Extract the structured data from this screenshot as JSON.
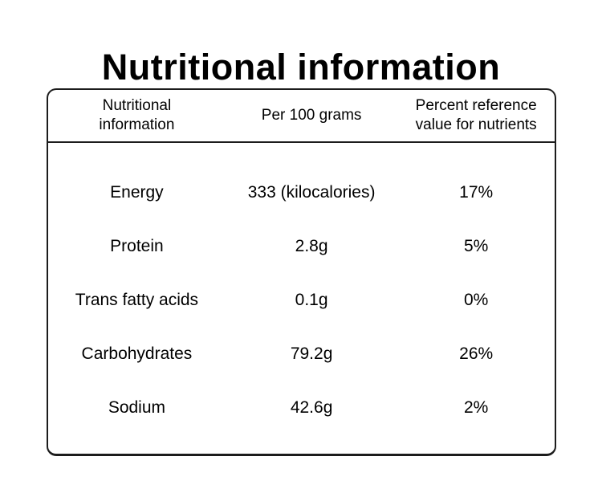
{
  "page": {
    "title": "Nutritional information",
    "background": "#ffffff"
  },
  "colors": {
    "text": "#000000",
    "border": "#1c1c1c"
  },
  "table": {
    "headers": {
      "nutrient": "Nutritional information",
      "per_100g": "Per 100 grams",
      "percent_ref": "Percent reference value for nutrients"
    },
    "rows": [
      {
        "name": "Energy",
        "per_100g": "333 (kilocalories)",
        "percent": "17%"
      },
      {
        "name": "Protein",
        "per_100g": "2.8g",
        "percent": "5%"
      },
      {
        "name": "Trans fatty acids",
        "per_100g": "0.1g",
        "percent": "0%"
      },
      {
        "name": "Carbohydrates",
        "per_100g": "79.2g",
        "percent": "26%"
      },
      {
        "name": "Sodium",
        "per_100g": "42.6g",
        "percent": "2%"
      }
    ]
  }
}
